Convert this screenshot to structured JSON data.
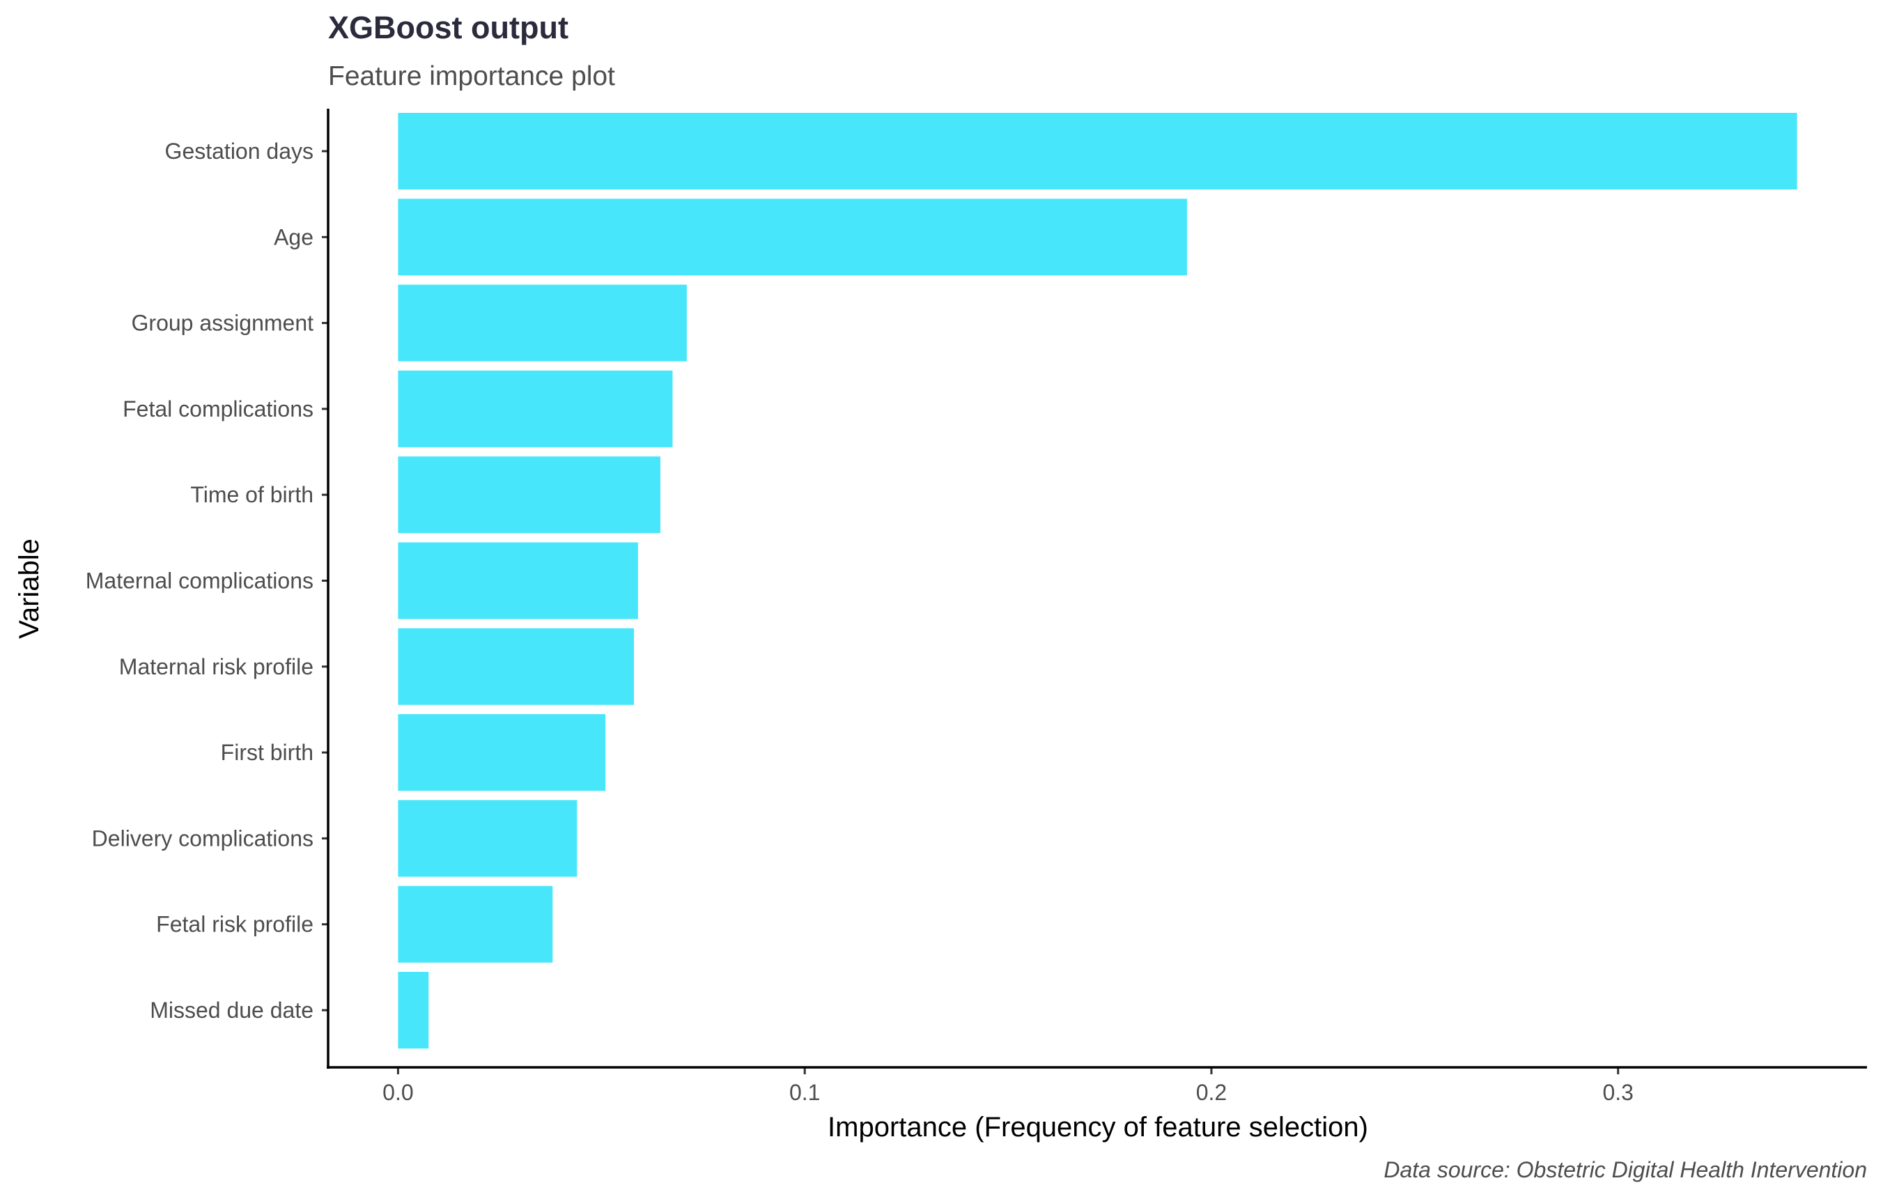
{
  "chart_data": {
    "type": "bar",
    "orientation": "horizontal",
    "title": "XGBoost output",
    "subtitle": "Feature importance plot",
    "xlabel": "Importance (Frequency of feature selection)",
    "ylabel": "Variable",
    "caption": "Data source: Obstetric Digital Health Intervention",
    "categories": [
      "Gestation days",
      "Age",
      "Group assignment",
      "Fetal complications",
      "Time of birth",
      "Maternal complications",
      "Maternal risk profile",
      "First birth",
      "Delivery complications",
      "Fetal risk profile",
      "Missed due date"
    ],
    "values": [
      0.344,
      0.194,
      0.071,
      0.0675,
      0.0645,
      0.059,
      0.058,
      0.051,
      0.044,
      0.038,
      0.0075
    ],
    "x_ticks": [
      0,
      0.1,
      0.2,
      0.3
    ],
    "x_tick_labels": [
      "0.0",
      "0.1",
      "0.2",
      "0.3"
    ],
    "xlim": [
      -0.0172,
      0.3612
    ],
    "bar_color": "#47E6FA",
    "grid": false,
    "legend": "none"
  }
}
